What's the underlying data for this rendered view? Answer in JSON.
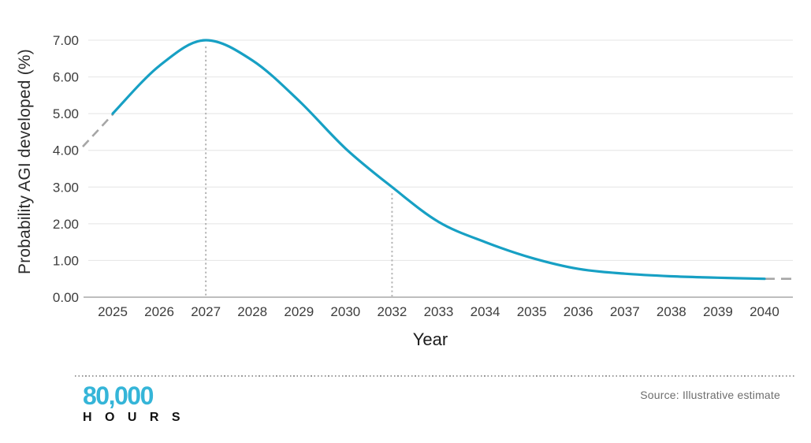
{
  "footer": {
    "logo_top": "80,000",
    "logo_bottom": "H O U R S",
    "source": "Source: Illustrative estimate"
  },
  "chart_data": {
    "type": "line",
    "title": "",
    "xlabel": "Year",
    "ylabel": "Probability AGI developed (%)",
    "categories": [
      "2025",
      "2026",
      "2027",
      "2028",
      "2029",
      "2030",
      "2032",
      "2033",
      "2034",
      "2035",
      "2036",
      "2037",
      "2038",
      "2039",
      "2040"
    ],
    "ytick_labels": [
      "0.00",
      "1.00",
      "2.00",
      "3.00",
      "4.00",
      "5.00",
      "6.00",
      "7.00"
    ],
    "ylim": [
      0,
      7
    ],
    "grid": "horizontal",
    "legend": "none",
    "series": [
      {
        "name": "Probability AGI developed (%)",
        "color": "#17a0c4",
        "style": "solid",
        "x": [
          "2025",
          "2026",
          "2027",
          "2028",
          "2029",
          "2030",
          "2032",
          "2033",
          "2034",
          "2035",
          "2036",
          "2037",
          "2038",
          "2039",
          "2040"
        ],
        "values": [
          5.0,
          6.3,
          7.0,
          6.45,
          5.35,
          4.05,
          3.0,
          2.05,
          1.5,
          1.07,
          0.77,
          0.64,
          0.57,
          0.53,
          0.5
        ]
      }
    ],
    "extrapolation_dashes": {
      "color": "#a6a6a6",
      "left": {
        "from_value": 4.1,
        "to_value": 5.0,
        "position": "before 2025"
      },
      "right": {
        "value": 0.5,
        "position": "after 2040"
      }
    },
    "markers": [
      {
        "x": "2027",
        "value": 7.0,
        "style": "dotted-vertical"
      },
      {
        "x": "2032",
        "value": 3.0,
        "style": "dotted-vertical"
      }
    ],
    "colors": {
      "line": "#17a0c4",
      "grid": "#e4e4e4",
      "axis": "#a8a8a8",
      "marker_dots": "#b4b4b4",
      "extrapolation": "#a6a6a6",
      "tick_text": "#3d3d3d",
      "logo_blue": "#35b5d8"
    },
    "source": "Source: Illustrative estimate"
  }
}
